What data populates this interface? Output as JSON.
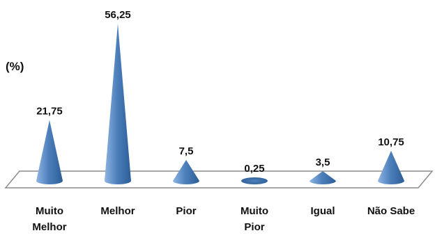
{
  "chart_data": {
    "type": "bar",
    "shape": "cone",
    "ylabel": "(%)",
    "categories": [
      [
        "Muito",
        "Melhor"
      ],
      [
        "Melhor"
      ],
      [
        "Pior"
      ],
      [
        "Muito",
        "Pior"
      ],
      [
        "Igual"
      ],
      [
        "Não Sabe"
      ]
    ],
    "values": [
      21.75,
      56.25,
      7.5,
      0.25,
      3.5,
      10.75
    ],
    "value_labels": [
      "21,75",
      "56,25",
      "7,5",
      "0,25",
      "3,5",
      "10,75"
    ],
    "ylim": [
      0,
      56.25
    ],
    "grid": false,
    "legend": "none",
    "colors": {
      "cone_light": "#8fb4e3",
      "cone_mid": "#4f81bd",
      "cone_dark": "#2c5d96",
      "floor_fill": "#ffffff",
      "floor_stroke": "#8c8c8c"
    }
  }
}
